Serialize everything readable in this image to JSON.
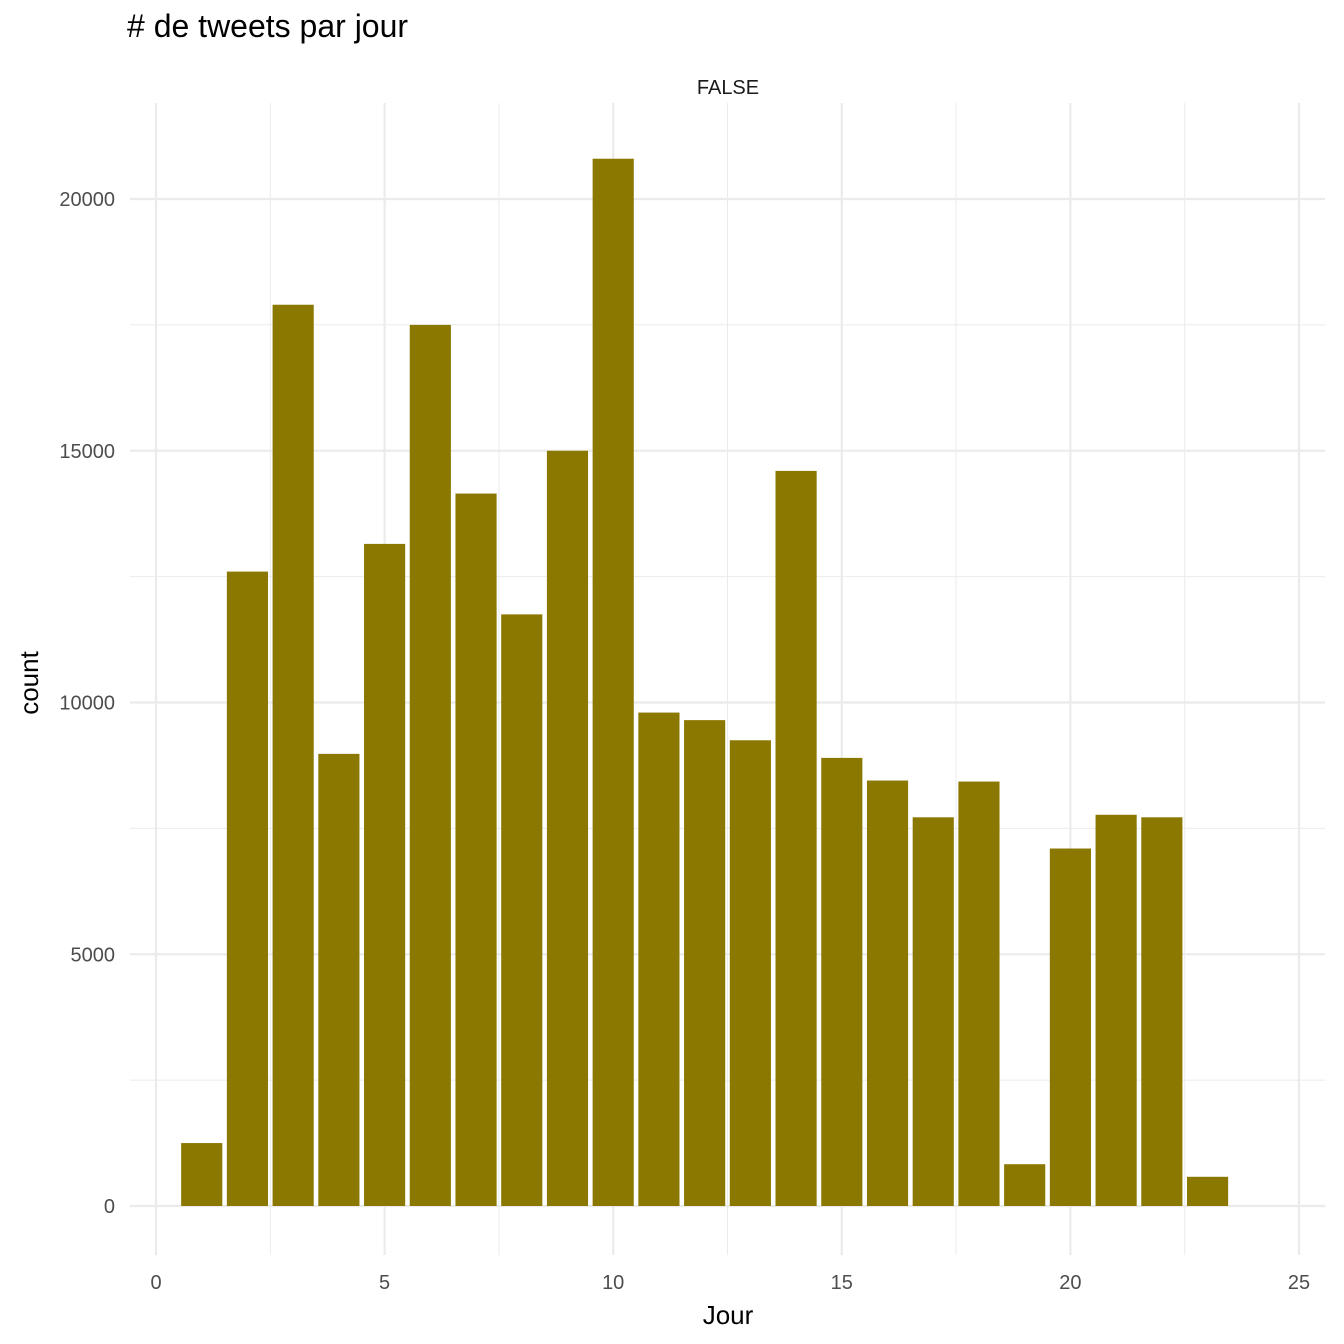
{
  "chart_data": {
    "type": "bar",
    "title": "# de tweets par jour",
    "facet_label": "FALSE",
    "xlabel": "Jour",
    "ylabel": "count",
    "x": [
      1,
      2,
      3,
      4,
      5,
      6,
      7,
      8,
      9,
      10,
      11,
      12,
      13,
      14,
      15,
      16,
      17,
      18,
      19,
      20,
      21,
      22,
      23
    ],
    "values": [
      1250,
      12600,
      17900,
      8980,
      13150,
      17500,
      14150,
      11750,
      15000,
      20800,
      9800,
      9650,
      9250,
      14600,
      8900,
      8450,
      7720,
      8430,
      830,
      7100,
      7770,
      7720,
      580
    ],
    "xlim": [
      -1,
      26
    ],
    "ylim": [
      -1000,
      21800
    ],
    "xticks": [
      0,
      5,
      10,
      15,
      20,
      25
    ],
    "yticks": [
      0,
      5000,
      10000,
      15000,
      20000
    ],
    "xtick_labels": [
      "0",
      "5",
      "10",
      "15",
      "20",
      "25"
    ],
    "ytick_labels": [
      "0",
      "5000",
      "10000",
      "15000",
      "20000"
    ],
    "grid": true,
    "bar_color": "#8b7800",
    "grid_color": "#ebebeb"
  }
}
